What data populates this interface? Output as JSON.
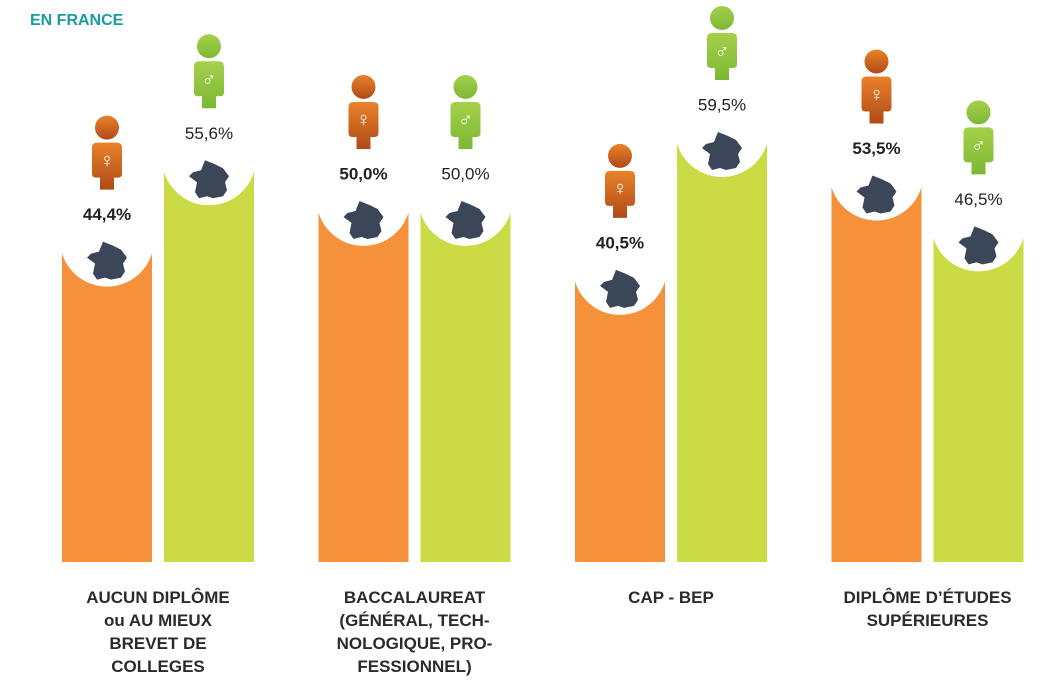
{
  "chart_data": {
    "type": "bar",
    "title": "EN FRANCE",
    "categories": [
      "AUCUN DIPLÔME\nou AU MIEUX\nBREVET DE\nCOLLEGES",
      "BACCALAUREAT\n(GÉNÉRAL, TECH-\nNOLOGIQUE, PRO-\nFESSIONNEL)",
      "CAP - BEP",
      "DIPLÔME D’ÉTUDES\nSUPÉRIEURES"
    ],
    "series": [
      {
        "name": "♀",
        "color": "#f5913a",
        "values": [
          44.4,
          50.0,
          40.5,
          53.5
        ],
        "value_labels": [
          "44,4%",
          "50,0%",
          "40,5%",
          "53,5%"
        ]
      },
      {
        "name": "♂",
        "color": "#cbdb45",
        "values": [
          55.6,
          50.0,
          59.5,
          46.5
        ],
        "value_labels": [
          "55,6%",
          "50,0%",
          "59,5%",
          "46,5%"
        ]
      }
    ],
    "ylim": [
      0,
      77.4
    ]
  }
}
